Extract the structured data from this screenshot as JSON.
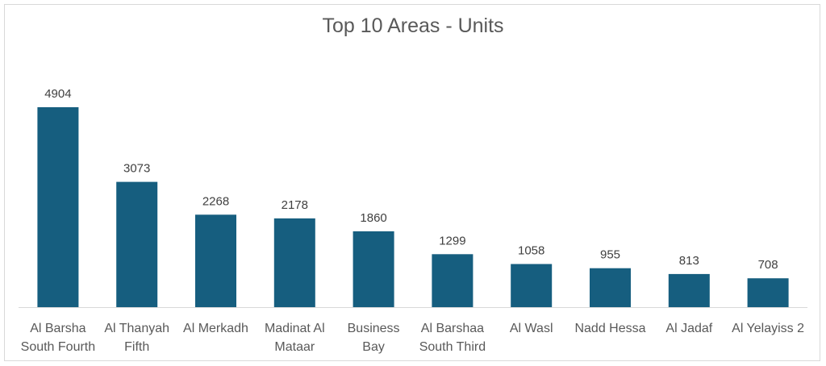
{
  "chart_data": {
    "type": "bar",
    "title": "Top 10 Areas - Units",
    "categories": [
      [
        "Al Barsha",
        "South Fourth"
      ],
      [
        "Al Thanyah",
        "Fifth"
      ],
      [
        "Al Merkadh"
      ],
      [
        "Madinat Al",
        "Mataar"
      ],
      [
        "Business",
        "Bay"
      ],
      [
        "Al Barshaa",
        "South Third"
      ],
      [
        "Al Wasl"
      ],
      [
        "Nadd Hessa"
      ],
      [
        "Al Jadaf"
      ],
      [
        "Al Yelayiss 2"
      ]
    ],
    "values": [
      4904,
      3073,
      2268,
      2178,
      1860,
      1299,
      1058,
      955,
      813,
      708
    ],
    "data_labels": [
      "4904",
      "3073",
      "2268",
      "2178",
      "1860",
      "1299",
      "1058",
      "955",
      "813",
      "708"
    ],
    "xlabel": "",
    "ylabel": "",
    "ylim": [
      0,
      4904
    ],
    "grid": false,
    "legend": "none",
    "bar_color": "#165e7f",
    "axis_color": "#d9d9d9"
  }
}
